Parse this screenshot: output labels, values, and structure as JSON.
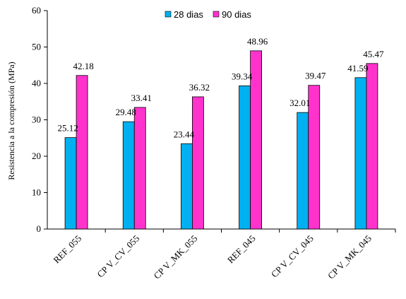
{
  "chart_data": {
    "type": "bar",
    "title": "",
    "xlabel": "",
    "ylabel": "Resistencia  a la compresión  (MPa)",
    "ylim": [
      0,
      60
    ],
    "yticks": [
      0,
      10,
      20,
      30,
      40,
      50,
      60
    ],
    "grid": false,
    "legend_position": "top-center",
    "categories": [
      "REF_055",
      "CP V_CV_055",
      "CP V_MK_055",
      "REF_045",
      "CP V_CV_045",
      "CP V_MK_045"
    ],
    "series": [
      {
        "name": "28 dias",
        "color": "#00B0F0",
        "values": [
          25.12,
          29.48,
          23.44,
          39.34,
          32.01,
          41.59
        ],
        "labels": [
          "25.12",
          "29.48",
          "23.44",
          "39.34",
          "32.01",
          "41.59"
        ]
      },
      {
        "name": "90 dias",
        "color": "#FF33CC",
        "values": [
          42.18,
          33.41,
          36.32,
          48.96,
          39.47,
          45.47
        ],
        "labels": [
          "42.18",
          "33.41",
          "36.32",
          "48.96",
          "39.47",
          "45.47"
        ]
      }
    ]
  }
}
